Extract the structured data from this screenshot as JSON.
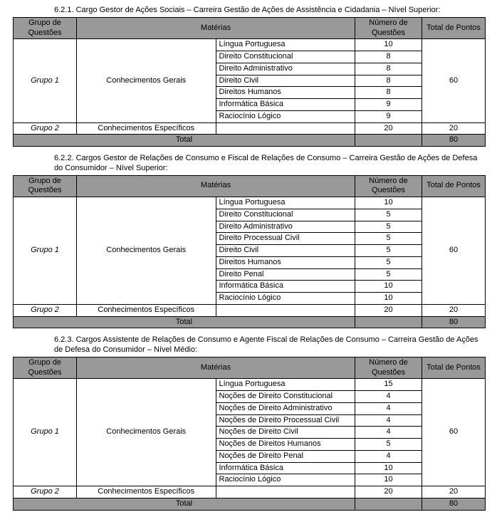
{
  "headers": {
    "grupo": "Grupo de Questões",
    "materias": "Matérias",
    "numero": "Número de Questões",
    "pontos": "Total de Pontos",
    "total": "Total"
  },
  "sections": [
    {
      "title": "6.2.1. Cargo Gestor de Ações Sociais – Carreira Gestão de Ações de Assistência e Cidadania – Nível Superior:",
      "grupo1": {
        "label": "Grupo 1",
        "category": "Conhecimentos Gerais",
        "subjects": [
          {
            "name": "Língua Portuguesa",
            "num": "10"
          },
          {
            "name": "Direito Constitucional",
            "num": "8"
          },
          {
            "name": "Direito Administrativo",
            "num": "8"
          },
          {
            "name": "Direito Civil",
            "num": "8"
          },
          {
            "name": "Direitos Humanos",
            "num": "8"
          },
          {
            "name": "Informática Básica",
            "num": "9"
          },
          {
            "name": "Raciocínio Lógico",
            "num": "9"
          }
        ],
        "points": "60"
      },
      "grupo2": {
        "label": "Grupo 2",
        "category": "Conhecimentos Específicos",
        "num": "20",
        "points": "20"
      },
      "total": "80"
    },
    {
      "title": "6.2.2. Cargos Gestor de Relações de Consumo e Fiscal de Relações de Consumo – Carreira Gestão de Ações de Defesa do Consumidor – Nível Superior:",
      "grupo1": {
        "label": "Grupo 1",
        "category": "Conhecimentos Gerais",
        "subjects": [
          {
            "name": "Língua Portuguesa",
            "num": "10"
          },
          {
            "name": "Direito Constitucional",
            "num": "5"
          },
          {
            "name": "Direito Administrativo",
            "num": "5"
          },
          {
            "name": "Direito Processual Civil",
            "num": "5"
          },
          {
            "name": "Direito Civil",
            "num": "5"
          },
          {
            "name": "Direitos Humanos",
            "num": "5"
          },
          {
            "name": "Direito Penal",
            "num": "5"
          },
          {
            "name": "Informática Básica",
            "num": "10"
          },
          {
            "name": "Raciocínio Lógico",
            "num": "10"
          }
        ],
        "points": "60"
      },
      "grupo2": {
        "label": "Grupo 2",
        "category": "Conhecimentos Específicos",
        "num": "20",
        "points": "20"
      },
      "total": "80"
    },
    {
      "title": "6.2.3. Cargos Assistente de Relações de Consumo e Agente Fiscal de Relações de Consumo – Carreira Gestão de Ações de Defesa do Consumidor – Nível Médio:",
      "grupo1": {
        "label": "Grupo 1",
        "category": "Conhecimentos Gerais",
        "subjects": [
          {
            "name": "Língua Portuguesa",
            "num": "15"
          },
          {
            "name": "Noções de Direito Constitucional",
            "num": "4"
          },
          {
            "name": "Noções de Direito Administrativo",
            "num": "4"
          },
          {
            "name": "Noções de Direito Processual Civil",
            "num": "4"
          },
          {
            "name": "Noções de Direito Civil",
            "num": "4"
          },
          {
            "name": "Noções de Direitos Humanos",
            "num": "5"
          },
          {
            "name": "Noções de Direito Penal",
            "num": "4"
          },
          {
            "name": "Informática Básica",
            "num": "10"
          },
          {
            "name": "Raciocínio Lógico",
            "num": "10"
          }
        ],
        "points": "60"
      },
      "grupo2": {
        "label": "Grupo 2",
        "category": "Conhecimentos Específicos",
        "num": "20",
        "points": "20"
      },
      "total": "80"
    }
  ]
}
